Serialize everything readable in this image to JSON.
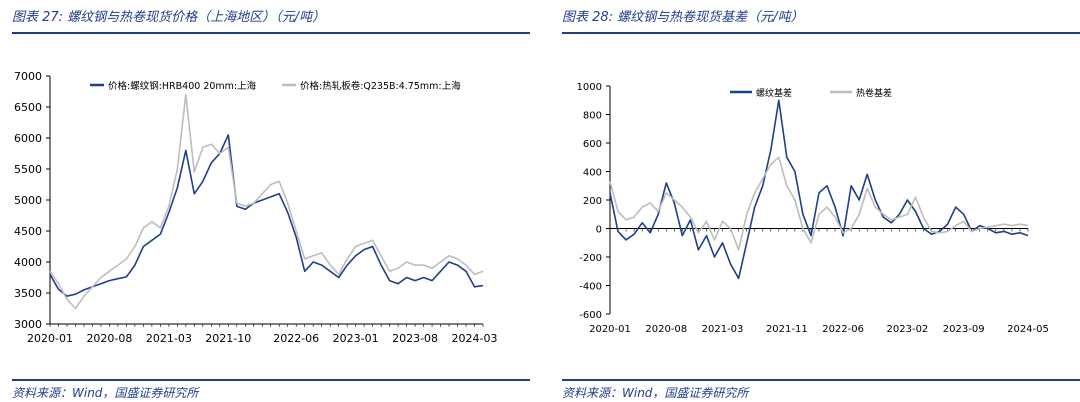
{
  "figures": [
    {
      "title": "图表 27:  螺纹钢与热卷现货价格（上海地区）（元/吨）",
      "source": "资料来源：Wind，国盛证券研究所",
      "chart_data": {
        "type": "line",
        "x_unit": "month",
        "xlim": [
          "2020-01",
          "2024-04"
        ],
        "ylim": [
          3000,
          7000
        ],
        "yticks": [
          3000,
          3500,
          4000,
          4500,
          5000,
          5500,
          6000,
          6500,
          7000
        ],
        "xticks": [
          "2020-01",
          "2020-08",
          "2021-03",
          "2021-10",
          "2022-06",
          "2023-01",
          "2023-08",
          "2024-03"
        ],
        "legend_position": "top",
        "series": [
          {
            "name": "价格:螺纹钢:HRB400 20mm:上海",
            "color": "#1f3f8a",
            "points": [
              [
                "2020-01",
                3800
              ],
              [
                "2020-02",
                3560
              ],
              [
                "2020-03",
                3450
              ],
              [
                "2020-04",
                3480
              ],
              [
                "2020-05",
                3550
              ],
              [
                "2020-06",
                3600
              ],
              [
                "2020-07",
                3650
              ],
              [
                "2020-08",
                3700
              ],
              [
                "2020-09",
                3730
              ],
              [
                "2020-10",
                3760
              ],
              [
                "2020-11",
                3950
              ],
              [
                "2020-12",
                4250
              ],
              [
                "2021-01",
                4350
              ],
              [
                "2021-02",
                4450
              ],
              [
                "2021-03",
                4800
              ],
              [
                "2021-04",
                5200
              ],
              [
                "2021-05",
                5800
              ],
              [
                "2021-06",
                5100
              ],
              [
                "2021-07",
                5300
              ],
              [
                "2021-08",
                5600
              ],
              [
                "2021-09",
                5750
              ],
              [
                "2021-10",
                6050
              ],
              [
                "2021-11",
                4900
              ],
              [
                "2021-12",
                4850
              ],
              [
                "2022-01",
                4950
              ],
              [
                "2022-02",
                5000
              ],
              [
                "2022-03",
                5050
              ],
              [
                "2022-04",
                5100
              ],
              [
                "2022-05",
                4800
              ],
              [
                "2022-06",
                4400
              ],
              [
                "2022-07",
                3850
              ],
              [
                "2022-08",
                4000
              ],
              [
                "2022-09",
                3950
              ],
              [
                "2022-10",
                3850
              ],
              [
                "2022-11",
                3750
              ],
              [
                "2022-12",
                3950
              ],
              [
                "2023-01",
                4100
              ],
              [
                "2023-02",
                4200
              ],
              [
                "2023-03",
                4250
              ],
              [
                "2023-04",
                3950
              ],
              [
                "2023-05",
                3700
              ],
              [
                "2023-06",
                3650
              ],
              [
                "2023-07",
                3750
              ],
              [
                "2023-08",
                3700
              ],
              [
                "2023-09",
                3750
              ],
              [
                "2023-10",
                3700
              ],
              [
                "2023-11",
                3850
              ],
              [
                "2023-12",
                4000
              ],
              [
                "2024-01",
                3950
              ],
              [
                "2024-02",
                3850
              ],
              [
                "2024-03",
                3600
              ],
              [
                "2024-04",
                3620
              ]
            ]
          },
          {
            "name": "价格:热轧板卷:Q235B:4.75mm:上海",
            "color": "#bdbdbd",
            "points": [
              [
                "2020-01",
                3850
              ],
              [
                "2020-02",
                3650
              ],
              [
                "2020-03",
                3400
              ],
              [
                "2020-04",
                3250
              ],
              [
                "2020-05",
                3450
              ],
              [
                "2020-06",
                3600
              ],
              [
                "2020-07",
                3750
              ],
              [
                "2020-08",
                3850
              ],
              [
                "2020-09",
                3950
              ],
              [
                "2020-10",
                4050
              ],
              [
                "2020-11",
                4250
              ],
              [
                "2020-12",
                4550
              ],
              [
                "2021-01",
                4650
              ],
              [
                "2021-02",
                4550
              ],
              [
                "2021-03",
                4900
              ],
              [
                "2021-04",
                5500
              ],
              [
                "2021-05",
                6700
              ],
              [
                "2021-06",
                5450
              ],
              [
                "2021-07",
                5850
              ],
              [
                "2021-08",
                5900
              ],
              [
                "2021-09",
                5750
              ],
              [
                "2021-10",
                5850
              ],
              [
                "2021-11",
                4950
              ],
              [
                "2021-12",
                4900
              ],
              [
                "2022-01",
                4950
              ],
              [
                "2022-02",
                5100
              ],
              [
                "2022-03",
                5250
              ],
              [
                "2022-04",
                5300
              ],
              [
                "2022-05",
                4950
              ],
              [
                "2022-06",
                4500
              ],
              [
                "2022-07",
                4050
              ],
              [
                "2022-08",
                4100
              ],
              [
                "2022-09",
                4150
              ],
              [
                "2022-10",
                3950
              ],
              [
                "2022-11",
                3800
              ],
              [
                "2022-12",
                4050
              ],
              [
                "2023-01",
                4250
              ],
              [
                "2023-02",
                4300
              ],
              [
                "2023-03",
                4350
              ],
              [
                "2023-04",
                4100
              ],
              [
                "2023-05",
                3850
              ],
              [
                "2023-06",
                3900
              ],
              [
                "2023-07",
                4000
              ],
              [
                "2023-08",
                3950
              ],
              [
                "2023-09",
                3950
              ],
              [
                "2023-10",
                3900
              ],
              [
                "2023-11",
                4000
              ],
              [
                "2023-12",
                4100
              ],
              [
                "2024-01",
                4050
              ],
              [
                "2024-02",
                3950
              ],
              [
                "2024-03",
                3800
              ],
              [
                "2024-04",
                3850
              ]
            ]
          }
        ]
      }
    },
    {
      "title": "图表 28:  螺纹钢与热卷现货基差（元/吨）",
      "source": "资料来源：Wind，国盛证券研究所",
      "chart_data": {
        "type": "line",
        "x_unit": "month",
        "xlim": [
          "2020-01",
          "2024-05"
        ],
        "ylim": [
          -600,
          1000
        ],
        "yticks": [
          -600,
          -400,
          -200,
          0,
          200,
          400,
          600,
          800,
          1000
        ],
        "xticks": [
          "2020-01",
          "2020-08",
          "2021-03",
          "2021-11",
          "2022-06",
          "2023-02",
          "2023-09",
          "2024-05"
        ],
        "legend_position": "top",
        "series": [
          {
            "name": "螺纹基差",
            "color": "#1f3f8a",
            "points": [
              [
                "2020-01",
                250
              ],
              [
                "2020-02",
                -20
              ],
              [
                "2020-03",
                -80
              ],
              [
                "2020-04",
                -40
              ],
              [
                "2020-05",
                40
              ],
              [
                "2020-06",
                -30
              ],
              [
                "2020-07",
                100
              ],
              [
                "2020-08",
                320
              ],
              [
                "2020-09",
                180
              ],
              [
                "2020-10",
                -50
              ],
              [
                "2020-11",
                60
              ],
              [
                "2020-12",
                -150
              ],
              [
                "2021-01",
                -50
              ],
              [
                "2021-02",
                -200
              ],
              [
                "2021-03",
                -100
              ],
              [
                "2021-04",
                -250
              ],
              [
                "2021-05",
                -350
              ],
              [
                "2021-06",
                -100
              ],
              [
                "2021-07",
                150
              ],
              [
                "2021-08",
                300
              ],
              [
                "2021-09",
                550
              ],
              [
                "2021-10",
                900
              ],
              [
                "2021-11",
                500
              ],
              [
                "2021-12",
                400
              ],
              [
                "2022-01",
                100
              ],
              [
                "2022-02",
                -50
              ],
              [
                "2022-03",
                250
              ],
              [
                "2022-04",
                300
              ],
              [
                "2022-05",
                150
              ],
              [
                "2022-06",
                -50
              ],
              [
                "2022-07",
                300
              ],
              [
                "2022-08",
                200
              ],
              [
                "2022-09",
                380
              ],
              [
                "2022-10",
                200
              ],
              [
                "2022-11",
                80
              ],
              [
                "2022-12",
                40
              ],
              [
                "2023-01",
                100
              ],
              [
                "2023-02",
                200
              ],
              [
                "2023-03",
                120
              ],
              [
                "2023-04",
                0
              ],
              [
                "2023-05",
                -40
              ],
              [
                "2023-06",
                -20
              ],
              [
                "2023-07",
                30
              ],
              [
                "2023-08",
                150
              ],
              [
                "2023-09",
                100
              ],
              [
                "2023-10",
                -20
              ],
              [
                "2023-11",
                20
              ],
              [
                "2023-12",
                0
              ],
              [
                "2024-01",
                -30
              ],
              [
                "2024-02",
                -20
              ],
              [
                "2024-03",
                -40
              ],
              [
                "2024-04",
                -30
              ],
              [
                "2024-05",
                -50
              ]
            ]
          },
          {
            "name": "热卷基差",
            "color": "#bdbdbd",
            "points": [
              [
                "2020-01",
                330
              ],
              [
                "2020-02",
                120
              ],
              [
                "2020-03",
                60
              ],
              [
                "2020-04",
                80
              ],
              [
                "2020-05",
                150
              ],
              [
                "2020-06",
                180
              ],
              [
                "2020-07",
                120
              ],
              [
                "2020-08",
                250
              ],
              [
                "2020-09",
                200
              ],
              [
                "2020-10",
                150
              ],
              [
                "2020-11",
                80
              ],
              [
                "2020-12",
                -30
              ],
              [
                "2021-01",
                50
              ],
              [
                "2021-02",
                -80
              ],
              [
                "2021-03",
                50
              ],
              [
                "2021-04",
                0
              ],
              [
                "2021-05",
                -150
              ],
              [
                "2021-06",
                100
              ],
              [
                "2021-07",
                250
              ],
              [
                "2021-08",
                350
              ],
              [
                "2021-09",
                450
              ],
              [
                "2021-10",
                500
              ],
              [
                "2021-11",
                300
              ],
              [
                "2021-12",
                200
              ],
              [
                "2022-01",
                0
              ],
              [
                "2022-02",
                -100
              ],
              [
                "2022-03",
                100
              ],
              [
                "2022-04",
                150
              ],
              [
                "2022-05",
                80
              ],
              [
                "2022-06",
                -30
              ],
              [
                "2022-07",
                0
              ],
              [
                "2022-08",
                100
              ],
              [
                "2022-09",
                280
              ],
              [
                "2022-10",
                150
              ],
              [
                "2022-11",
                100
              ],
              [
                "2022-12",
                60
              ],
              [
                "2023-01",
                80
              ],
              [
                "2023-02",
                100
              ],
              [
                "2023-03",
                220
              ],
              [
                "2023-04",
                80
              ],
              [
                "2023-05",
                -20
              ],
              [
                "2023-06",
                -30
              ],
              [
                "2023-07",
                -20
              ],
              [
                "2023-08",
                20
              ],
              [
                "2023-09",
                50
              ],
              [
                "2023-10",
                -20
              ],
              [
                "2023-11",
                0
              ],
              [
                "2023-12",
                10
              ],
              [
                "2024-01",
                20
              ],
              [
                "2024-02",
                30
              ],
              [
                "2024-03",
                20
              ],
              [
                "2024-04",
                30
              ],
              [
                "2024-05",
                20
              ]
            ]
          }
        ]
      }
    }
  ]
}
